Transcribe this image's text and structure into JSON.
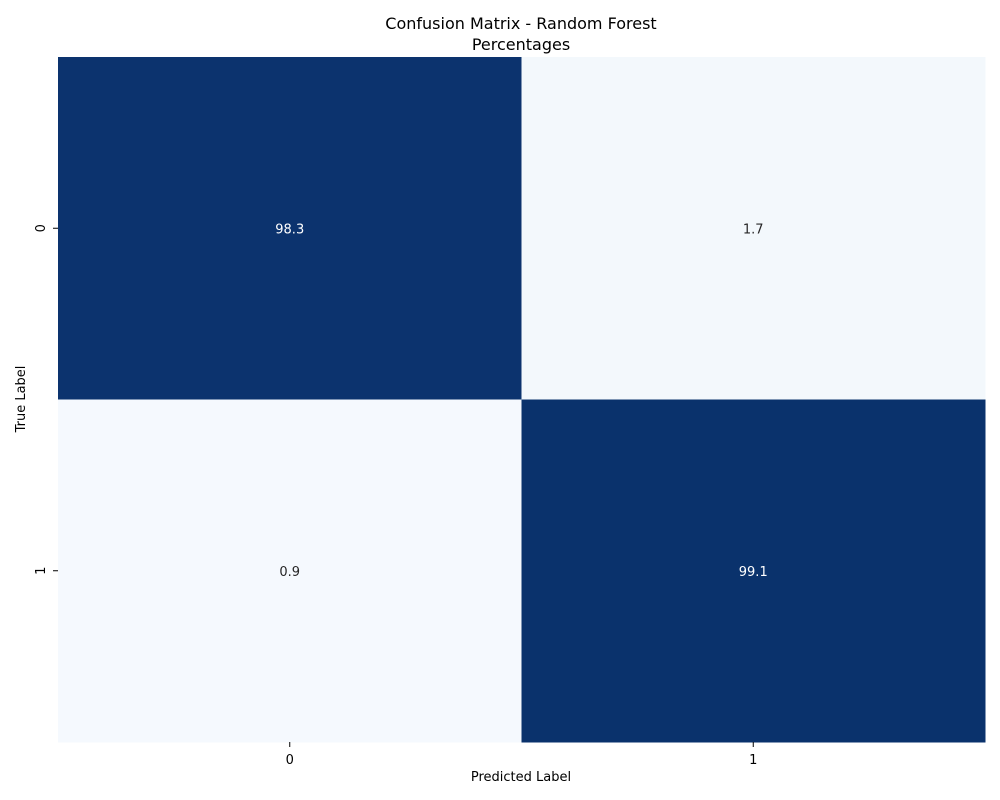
{
  "chart_data": {
    "type": "heatmap",
    "title": "Confusion Matrix - Random Forest",
    "subtitle": "Percentages",
    "xlabel": "Predicted Label",
    "ylabel": "True Label",
    "x_categories": [
      "0",
      "1"
    ],
    "y_categories": [
      "0",
      "1"
    ],
    "values": [
      [
        98.3,
        1.7
      ],
      [
        0.9,
        99.1
      ]
    ],
    "value_labels": [
      [
        "98.3",
        "1.7"
      ],
      [
        "0.9",
        "99.1"
      ]
    ],
    "colormap": "Blues",
    "value_range": [
      0,
      100
    ],
    "colorbar": false,
    "grid": false,
    "colors": {
      "low": "#f7fbff",
      "high": "#08306b",
      "text_on_dark": "#ffffff",
      "text_on_light": "#262626"
    }
  }
}
